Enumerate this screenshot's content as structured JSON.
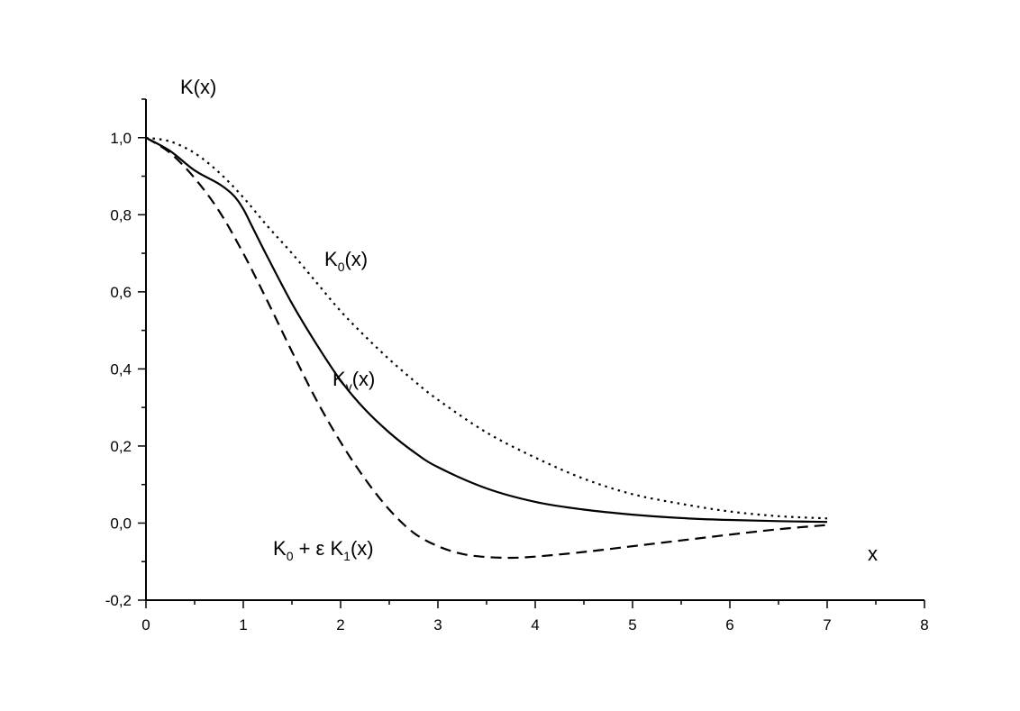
{
  "chart_data": {
    "type": "line",
    "title": "",
    "xlabel": "x",
    "ylabel": "K(x)",
    "xlim": [
      0,
      8
    ],
    "ylim": [
      -0.2,
      1.1
    ],
    "x_ticks": [
      0,
      1,
      2,
      3,
      4,
      5,
      6,
      7,
      8
    ],
    "x_tick_labels": [
      "0",
      "1",
      "2",
      "3",
      "4",
      "5",
      "6",
      "7",
      "8"
    ],
    "y_ticks": [
      -0.2,
      0.0,
      0.2,
      0.4,
      0.6,
      0.8,
      1.0
    ],
    "y_tick_labels": [
      "-0,2",
      "0,0",
      "0,2",
      "0,4",
      "0,6",
      "0,8",
      "1,0"
    ],
    "grid": false,
    "legend": "none (curves labeled inline)",
    "series": [
      {
        "name": "K0(x)",
        "label_parts": {
          "main": "K",
          "sub": "0",
          "rest": "(x)"
        },
        "style": "dotted",
        "x": [
          0,
          0.25,
          0.5,
          0.75,
          1.0,
          1.25,
          1.5,
          1.75,
          2.0,
          2.25,
          2.5,
          2.75,
          3.0,
          3.5,
          4.0,
          4.5,
          5.0,
          5.5,
          6.0,
          6.5,
          7.0
        ],
        "values": [
          1.0,
          0.99,
          0.96,
          0.91,
          0.845,
          0.77,
          0.7,
          0.625,
          0.55,
          0.485,
          0.425,
          0.37,
          0.32,
          0.235,
          0.17,
          0.115,
          0.075,
          0.05,
          0.03,
          0.018,
          0.012
        ]
      },
      {
        "name": "Kv(x)",
        "label_parts": {
          "main": "K",
          "sub": "v",
          "rest": "(x)"
        },
        "style": "solid",
        "x": [
          0,
          0.25,
          0.5,
          0.75,
          0.9,
          1.0,
          1.1,
          1.25,
          1.5,
          1.75,
          2.0,
          2.25,
          2.5,
          2.75,
          3.0,
          3.5,
          4.0,
          4.5,
          5.0,
          5.5,
          6.0,
          6.5,
          7.0
        ],
        "values": [
          1.0,
          0.965,
          0.915,
          0.88,
          0.85,
          0.815,
          0.765,
          0.69,
          0.57,
          0.465,
          0.37,
          0.295,
          0.235,
          0.185,
          0.145,
          0.09,
          0.055,
          0.035,
          0.022,
          0.013,
          0.008,
          0.005,
          0.003
        ]
      },
      {
        "name": "K0 + ε K1(x)",
        "label_parts": {
          "main": "K",
          "sub": "0",
          "mid": " + ε K",
          "sub2": "1",
          "rest": "(x)"
        },
        "style": "dashed",
        "x": [
          0,
          0.25,
          0.5,
          0.75,
          1.0,
          1.25,
          1.5,
          1.75,
          2.0,
          2.25,
          2.5,
          2.75,
          3.0,
          3.25,
          3.5,
          3.75,
          4.0,
          4.5,
          5.0,
          5.5,
          6.0,
          6.5,
          7.0
        ],
        "values": [
          1.0,
          0.96,
          0.895,
          0.81,
          0.7,
          0.575,
          0.445,
          0.32,
          0.21,
          0.115,
          0.035,
          -0.025,
          -0.06,
          -0.08,
          -0.088,
          -0.09,
          -0.087,
          -0.075,
          -0.06,
          -0.045,
          -0.03,
          -0.016,
          -0.005
        ]
      }
    ]
  }
}
